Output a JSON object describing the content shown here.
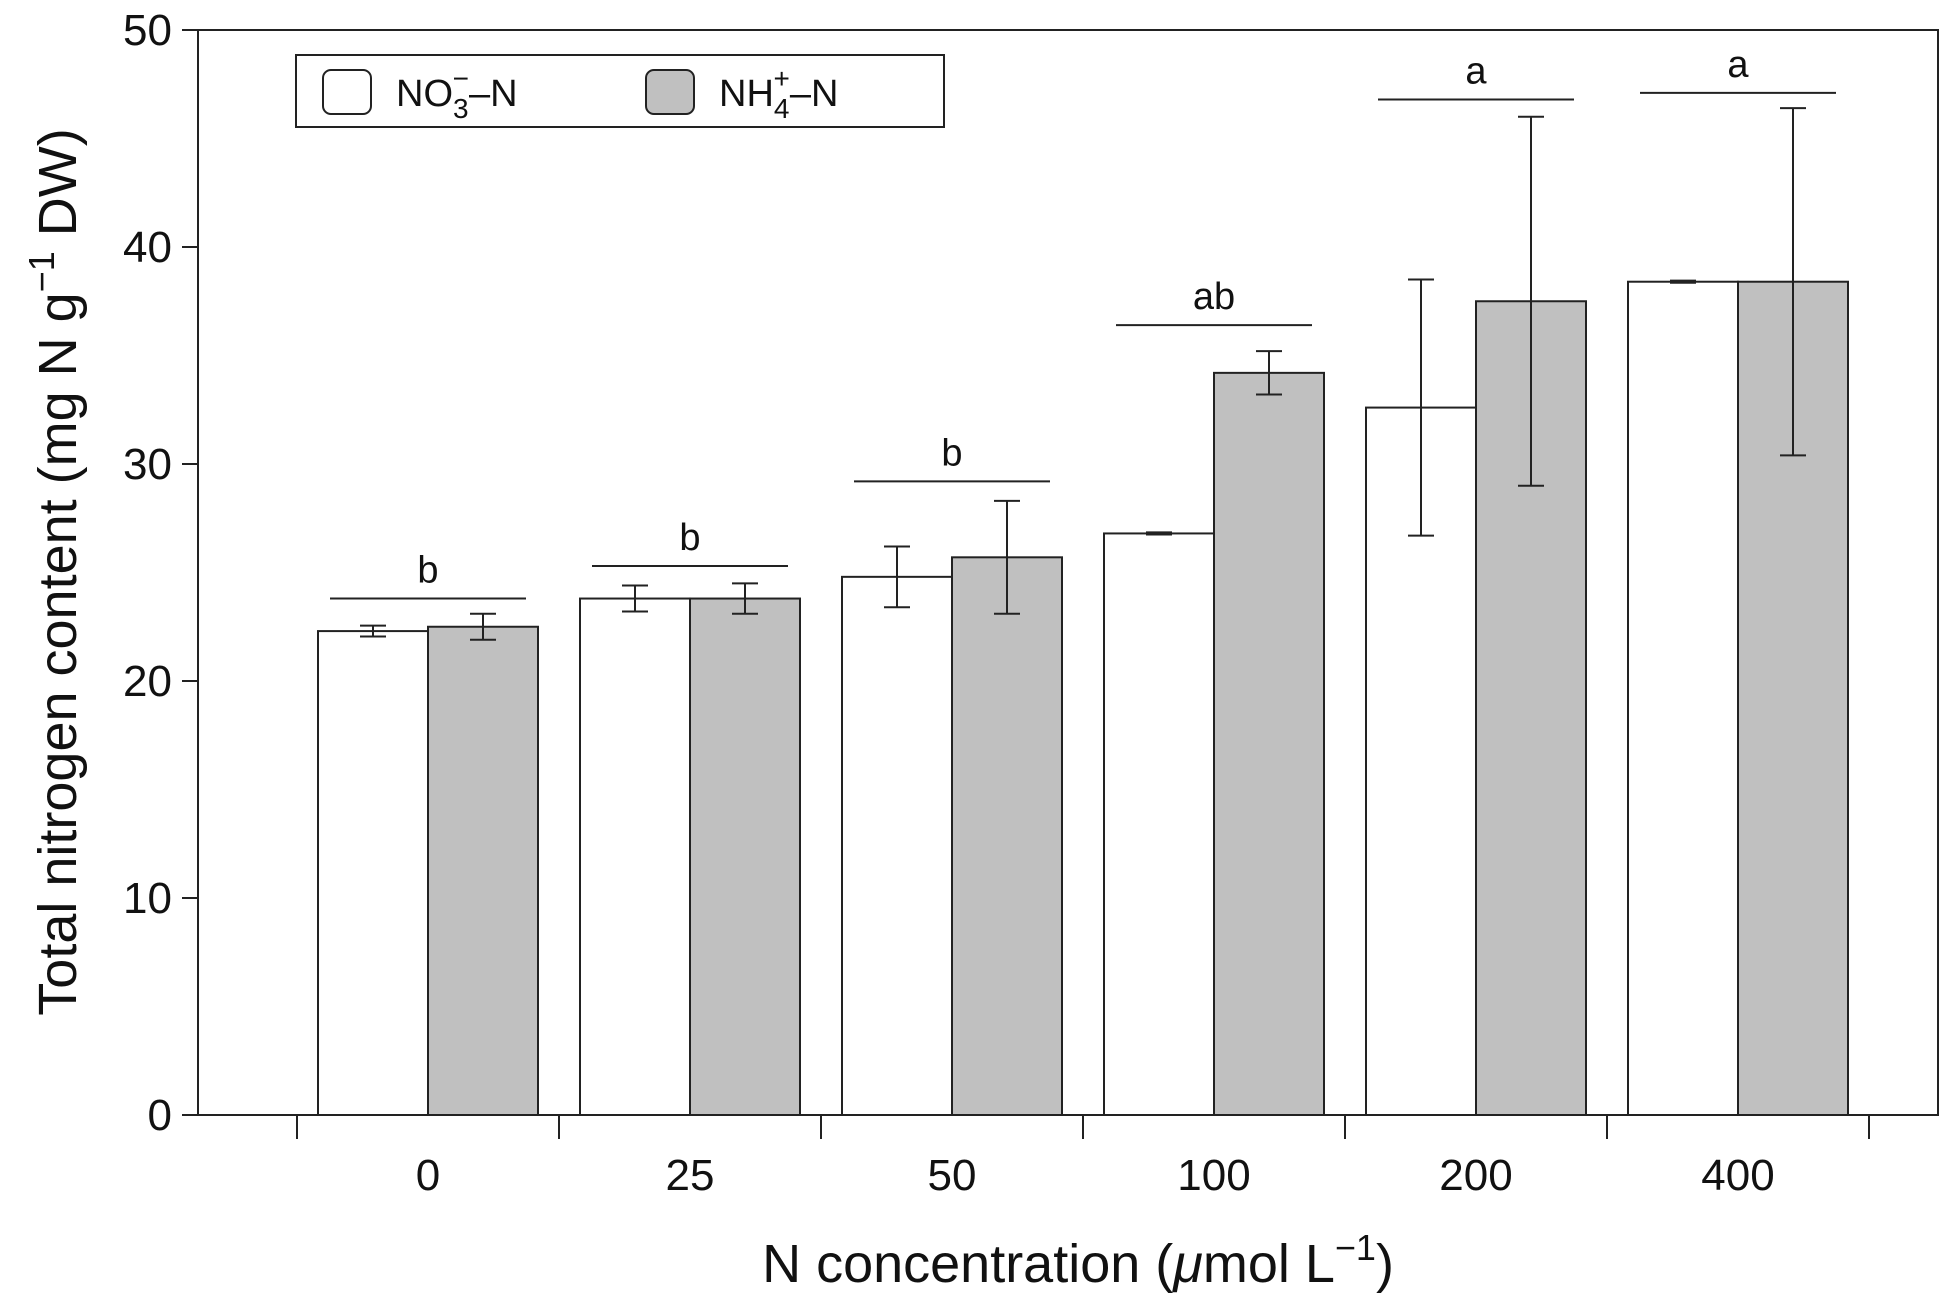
{
  "chart_data": {
    "type": "bar",
    "title": "",
    "xlabel": "N concentration (μmol L−1)",
    "xlabel_parts": {
      "main": "N concentration (",
      "mu": "μ",
      "unit": "mol L",
      "sup": "−1",
      "close": ")"
    },
    "ylabel": "Total nitrogen content (mg N g−1 DW)",
    "ylabel_parts": {
      "main": "Total nitrogen content (mg N g",
      "sup": "−1",
      "end": " DW)"
    },
    "ylim": [
      0,
      50
    ],
    "yticks": [
      0,
      10,
      20,
      30,
      40,
      50
    ],
    "categories": [
      "0",
      "25",
      "50",
      "100",
      "200",
      "400"
    ],
    "series": [
      {
        "name": "NO3−–N",
        "legend": {
          "base": "NO",
          "sub": "3",
          "sup": "−",
          "tail": "–N"
        },
        "fill": "#ffffff",
        "values": [
          22.3,
          23.8,
          24.8,
          26.8,
          32.6,
          38.4
        ],
        "errors": [
          0.25,
          0.6,
          1.4,
          0.05,
          5.9,
          0.05
        ]
      },
      {
        "name": "NH4+–N",
        "legend": {
          "base": "NH",
          "sub": "4",
          "sup": "+",
          "tail": "–N"
        },
        "fill": "#c0c0c0",
        "values": [
          22.5,
          23.8,
          25.7,
          34.2,
          37.5,
          38.4
        ],
        "errors": [
          0.6,
          0.7,
          2.6,
          1.0,
          8.5,
          8.0
        ]
      }
    ],
    "significance": [
      {
        "label": "b",
        "level": 23.8
      },
      {
        "label": "b",
        "level": 25.3
      },
      {
        "label": "b",
        "level": 29.2
      },
      {
        "label": "ab",
        "level": 36.4
      },
      {
        "label": "a",
        "level": 46.8
      },
      {
        "label": "a",
        "level": 47.1
      }
    ],
    "legend_position": "top-left",
    "grid": false
  }
}
